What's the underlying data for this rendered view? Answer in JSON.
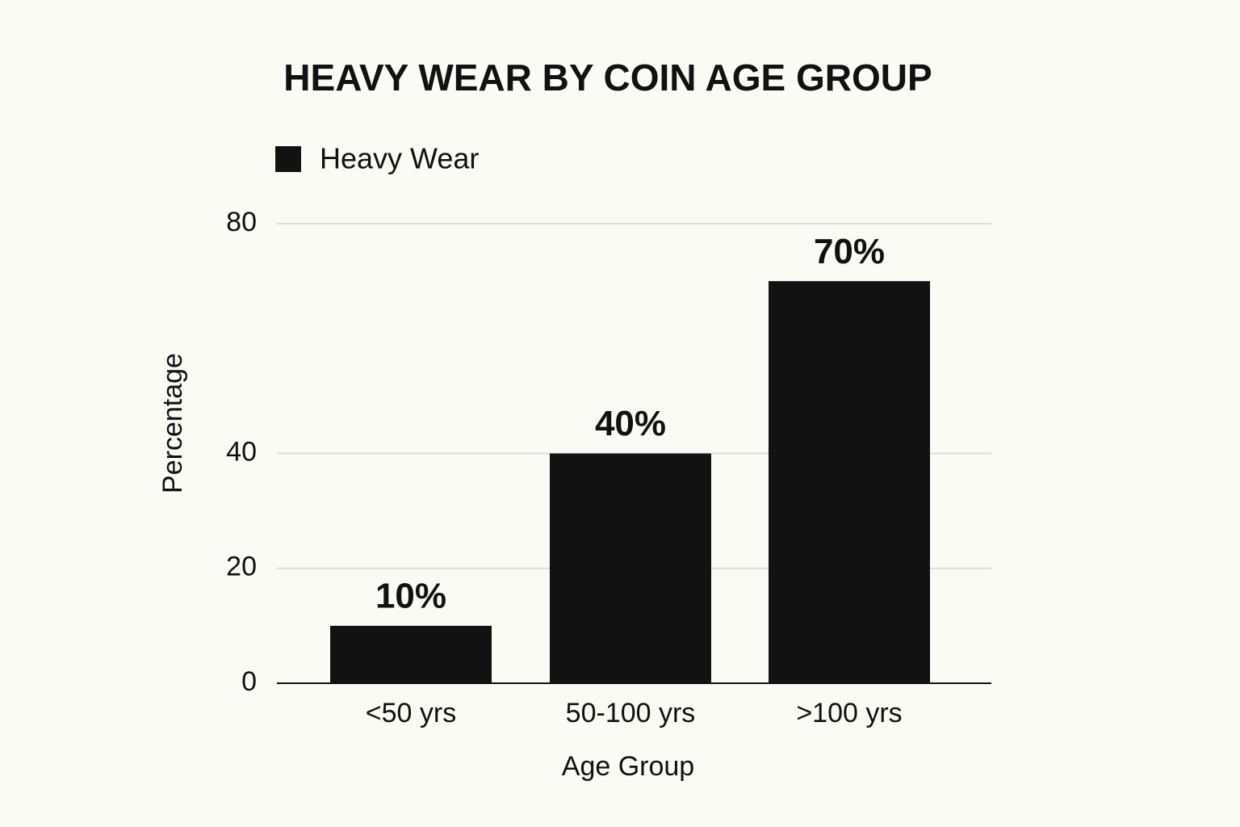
{
  "chart_data": {
    "type": "bar",
    "title": "HEAVY WEAR BY COIN AGE GROUP",
    "x_label": "Age Group",
    "y_label": "Percentage",
    "categories": [
      "<50 yrs",
      "50-100 yrs",
      ">100 yrs"
    ],
    "series": [
      {
        "name": "Heavy Wear",
        "color": "#121212",
        "values": [
          10,
          40,
          70
        ],
        "value_labels": [
          "10%",
          "40%",
          "70%"
        ]
      }
    ],
    "ylim": [
      0,
      80
    ],
    "yticks": [
      0,
      20,
      40,
      80
    ],
    "grid": true,
    "legend": "top-left"
  }
}
